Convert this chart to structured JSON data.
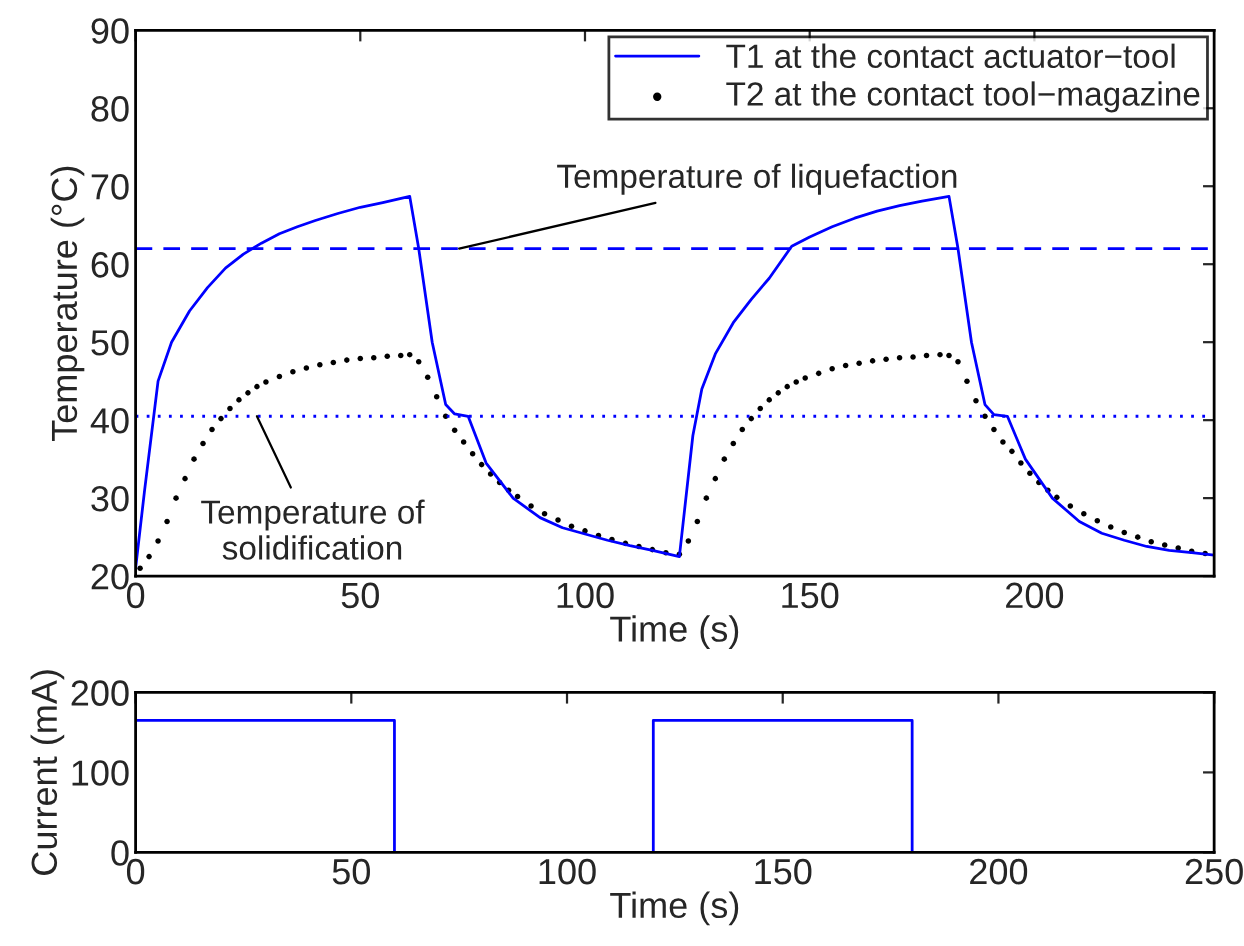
{
  "chart_data": [
    {
      "type": "line",
      "xlabel": "Time (s)",
      "ylabel": "Temperature (°C)",
      "xlim": [
        0,
        240
      ],
      "ylim": [
        20,
        90
      ],
      "xticks": [
        0,
        50,
        100,
        150,
        200
      ],
      "yticks": [
        20,
        30,
        40,
        50,
        60,
        70,
        80,
        90
      ],
      "grid": false,
      "legend": "top right",
      "series": [
        {
          "name": "T1 at the contact actuator−tool",
          "color": "#0000ff",
          "marker": "none",
          "line_style": "solid",
          "x": [
            0,
            2,
            5,
            8,
            12,
            16,
            20,
            24,
            28,
            32,
            36,
            40,
            45,
            50,
            55,
            61,
            63,
            66,
            69,
            71,
            74,
            78,
            84,
            90,
            95,
            100,
            105,
            110,
            115,
            121,
            124,
            126,
            129,
            133,
            137,
            141,
            146,
            150,
            155,
            160,
            165,
            170,
            175,
            181,
            183,
            186,
            189,
            191,
            194,
            198,
            204,
            210,
            215,
            220,
            225,
            230,
            235,
            240
          ],
          "values": [
            21,
            31,
            45,
            50,
            54,
            57,
            59.5,
            61.3,
            62.7,
            63.9,
            64.8,
            65.6,
            66.5,
            67.3,
            67.9,
            68.7,
            62,
            50,
            42,
            40.8,
            40.5,
            34.5,
            30,
            27.5,
            26.2,
            25.4,
            24.6,
            23.9,
            23.3,
            22.5,
            38,
            44,
            48.5,
            52.5,
            55.5,
            58.2,
            62.3,
            63.5,
            64.8,
            65.9,
            66.8,
            67.5,
            68.1,
            68.7,
            62,
            50,
            42,
            40.7,
            40.5,
            35,
            30,
            27,
            25.5,
            24.6,
            23.8,
            23.3,
            23,
            22.7
          ]
        },
        {
          "name": "T2 at the contact tool−magazine",
          "type": "scatter",
          "color": "#000000",
          "marker": "circle",
          "x": [
            1,
            3,
            5,
            7,
            9,
            11,
            13,
            15,
            17,
            19,
            21,
            23,
            25,
            27,
            29,
            32,
            35,
            38,
            41,
            44,
            47,
            50,
            53,
            56,
            59,
            61,
            63,
            65,
            67,
            69,
            71,
            73,
            75,
            77,
            79,
            81,
            83,
            85,
            88,
            91,
            94,
            97,
            100,
            103,
            106,
            109,
            112,
            115,
            118,
            121,
            123,
            125,
            127,
            129,
            131,
            133,
            135,
            137,
            139,
            141,
            143,
            145,
            147,
            149,
            152,
            155,
            158,
            161,
            164,
            167,
            170,
            173,
            176,
            179,
            181,
            183,
            185,
            187,
            189,
            191,
            193,
            195,
            197,
            199,
            201,
            203,
            205,
            208,
            211,
            214,
            217,
            220,
            223,
            226,
            229,
            232,
            235,
            238
          ],
          "values": [
            21,
            22.5,
            24.5,
            27,
            30,
            32.5,
            35,
            37,
            38.8,
            40.2,
            41.5,
            42.6,
            43.5,
            44.3,
            44.9,
            45.6,
            46.2,
            46.7,
            47.1,
            47.4,
            47.7,
            47.9,
            48,
            48.2,
            48.3,
            48.4,
            47.5,
            45.5,
            43,
            40.5,
            38.7,
            37.2,
            35.7,
            34.3,
            33.1,
            32,
            31,
            30.2,
            29,
            28,
            27.2,
            26.4,
            25.8,
            25.2,
            24.7,
            24.2,
            23.8,
            23.4,
            23,
            22.8,
            24.5,
            27,
            30,
            32.5,
            35,
            37,
            38.8,
            40.2,
            41.5,
            42.6,
            43.5,
            44.3,
            44.9,
            45.4,
            46,
            46.6,
            47,
            47.3,
            47.6,
            47.8,
            48,
            48.1,
            48.3,
            48.4,
            48.3,
            47.5,
            45,
            42.5,
            40.5,
            38.8,
            37.2,
            36,
            34.5,
            33.2,
            32,
            31,
            30.1,
            29,
            28,
            27.1,
            26.3,
            25.6,
            25,
            24.4,
            24,
            23.6,
            23.2,
            22.9
          ]
        }
      ],
      "ref_lines": [
        {
          "axis": "y",
          "value": 62,
          "color": "#0000ff",
          "line_style": "dashed"
        },
        {
          "axis": "y",
          "value": 40.5,
          "color": "#0000ff",
          "line_style": "dotted"
        }
      ],
      "annotations": [
        {
          "text": "Temperature of liquefaction",
          "x": 72,
          "y": 62
        },
        {
          "text": "Temperature of\nsolidification",
          "x": 27,
          "y": 40.5
        }
      ]
    },
    {
      "type": "line",
      "xlabel": "Time (s)",
      "ylabel": "Current (mA)",
      "xlim": [
        0,
        250
      ],
      "ylim": [
        0,
        200
      ],
      "xticks": [
        0,
        50,
        100,
        150,
        200,
        250
      ],
      "yticks": [
        0,
        100,
        200
      ],
      "grid": false,
      "series": [
        {
          "color": "#0000ff",
          "line_style": "solid",
          "x": [
            0,
            60,
            60,
            120,
            120,
            180,
            180,
            240
          ],
          "values": [
            165,
            165,
            0,
            0,
            165,
            165,
            0,
            0
          ]
        }
      ]
    }
  ]
}
